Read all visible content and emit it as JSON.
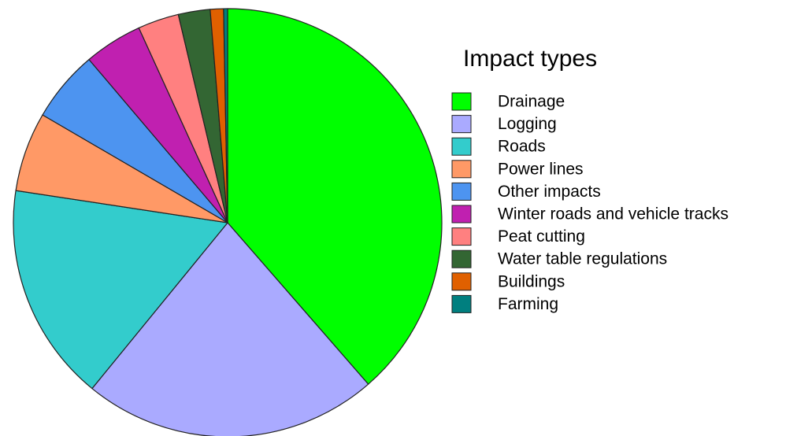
{
  "chart_data": {
    "type": "pie",
    "legend_title": "Impact types",
    "categories": [
      "Drainage",
      "Logging",
      "Roads",
      "Power lines",
      "Other impacts",
      "Winter roads and vehicle tracks",
      "Peat cutting",
      "Water table regulations",
      "Buildings",
      "Farming"
    ],
    "values": [
      38.6,
      22.3,
      16.5,
      6.0,
      5.4,
      4.4,
      3.1,
      2.4,
      1.0,
      0.3
    ],
    "colors": [
      "#00ff00",
      "#aaaaff",
      "#33cccc",
      "#ff9966",
      "#4d94f0",
      "#c020b0",
      "#ff8080",
      "#336633",
      "#e06000",
      "#007f7f"
    ],
    "legend": "right"
  }
}
